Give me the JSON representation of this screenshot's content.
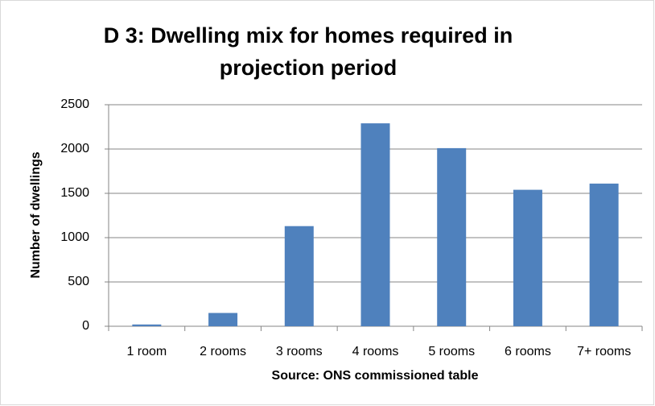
{
  "chart_data": {
    "type": "bar",
    "title": "D 3: Dwelling mix for homes required in projection period",
    "y_label": "Number of dwellings",
    "x_label": "Source: ONS commissioned table",
    "categories": [
      "1 room",
      "2 rooms",
      "3 rooms",
      "4 rooms",
      "5 rooms",
      "6 rooms",
      "7+ rooms"
    ],
    "values": [
      20,
      150,
      1130,
      2290,
      2010,
      1540,
      1610
    ],
    "color": "#4f81bd",
    "ylim": [
      0,
      2500
    ],
    "yticks": [
      0,
      500,
      1000,
      1500,
      2000,
      2500
    ],
    "grid": true
  }
}
